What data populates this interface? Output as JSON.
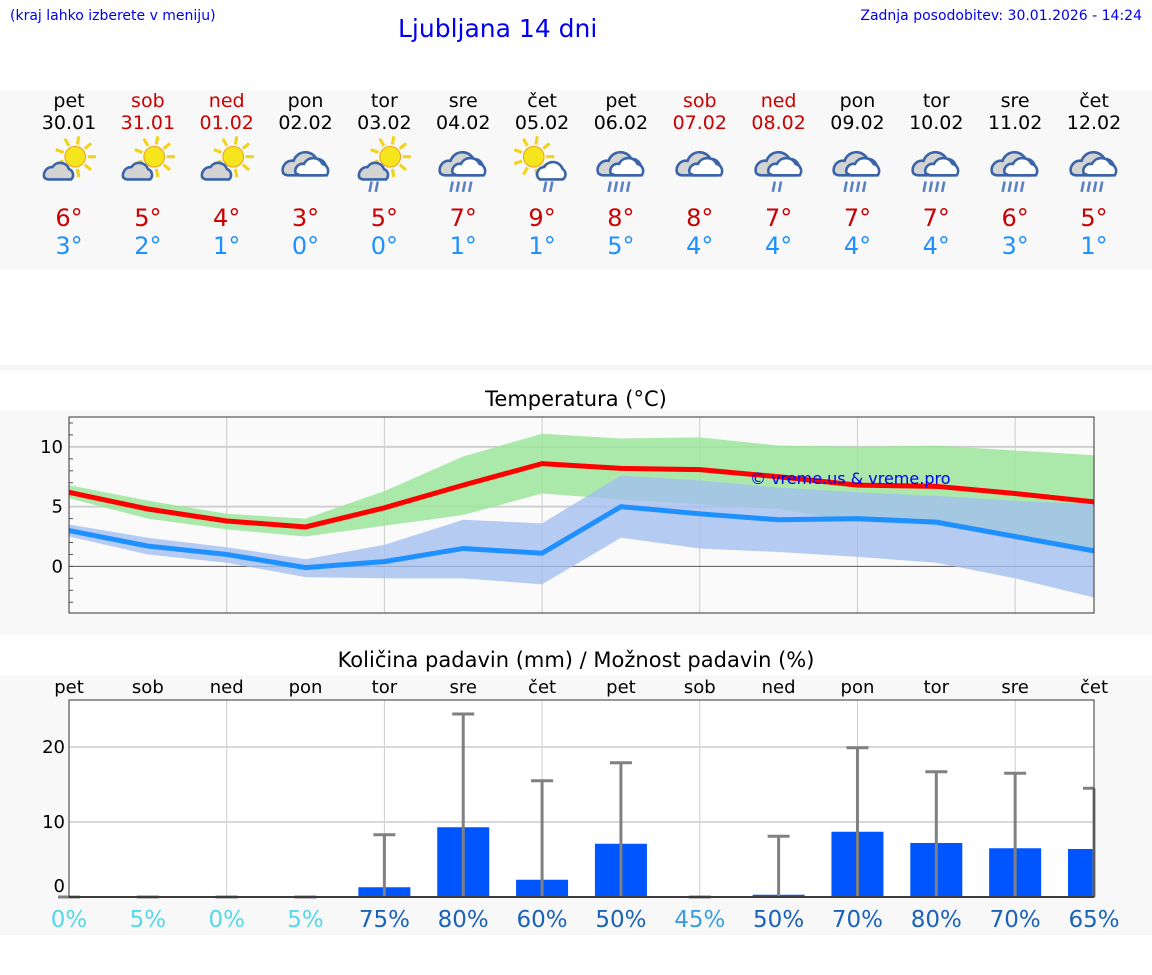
{
  "header": {
    "hint": "(kraj lahko izberete v meniju)",
    "title": "Ljubljana 14 dni",
    "updated": "Zadnja posodobitev: 30.01.2026 - 14:24"
  },
  "days": [
    {
      "name": "pet",
      "date": "30.01",
      "weekend": false,
      "icon": "sun-cloud",
      "max": "6°",
      "min": "3°"
    },
    {
      "name": "sob",
      "date": "31.01",
      "weekend": true,
      "icon": "sun-cloud",
      "max": "5°",
      "min": "2°"
    },
    {
      "name": "ned",
      "date": "01.02",
      "weekend": true,
      "icon": "sun-cloud",
      "max": "4°",
      "min": "1°"
    },
    {
      "name": "pon",
      "date": "02.02",
      "weekend": false,
      "icon": "cloud",
      "max": "3°",
      "min": "0°"
    },
    {
      "name": "tor",
      "date": "03.02",
      "weekend": false,
      "icon": "sun-cloud-rain",
      "max": "5°",
      "min": "0°"
    },
    {
      "name": "sre",
      "date": "04.02",
      "weekend": false,
      "icon": "cloud-rain",
      "max": "7°",
      "min": "1°"
    },
    {
      "name": "čet",
      "date": "05.02",
      "weekend": false,
      "icon": "sun-cloud-light-rain",
      "max": "9°",
      "min": "1°"
    },
    {
      "name": "pet",
      "date": "06.02",
      "weekend": false,
      "icon": "cloud-rain",
      "max": "8°",
      "min": "5°"
    },
    {
      "name": "sob",
      "date": "07.02",
      "weekend": true,
      "icon": "cloud",
      "max": "8°",
      "min": "4°"
    },
    {
      "name": "ned",
      "date": "08.02",
      "weekend": true,
      "icon": "cloud-light-rain",
      "max": "7°",
      "min": "4°"
    },
    {
      "name": "pon",
      "date": "09.02",
      "weekend": false,
      "icon": "cloud-rain",
      "max": "7°",
      "min": "4°"
    },
    {
      "name": "tor",
      "date": "10.02",
      "weekend": false,
      "icon": "cloud-rain",
      "max": "7°",
      "min": "4°"
    },
    {
      "name": "sre",
      "date": "11.02",
      "weekend": false,
      "icon": "cloud-rain",
      "max": "6°",
      "min": "3°"
    },
    {
      "name": "čet",
      "date": "12.02",
      "weekend": false,
      "icon": "cloud-rain",
      "max": "5°",
      "min": "1°"
    }
  ],
  "chart_data": [
    {
      "type": "line",
      "title": "Temperatura (°C)",
      "watermark": "© vreme.us & vreme.pro",
      "ylim": [
        -3.9,
        12.5
      ],
      "yticks": [
        0,
        5,
        10
      ],
      "grid": true,
      "series": [
        {
          "color": "#ff0000",
          "values": [
            6.2,
            4.8,
            3.8,
            3.3,
            4.9,
            6.8,
            8.6,
            8.2,
            8.1,
            7.5,
            6.8,
            6.7,
            6.1,
            5.4
          ],
          "band_color": "#9be59b",
          "band_low": [
            5.7,
            4.0,
            3.1,
            2.5,
            3.4,
            4.3,
            6.1,
            5.6,
            5.2,
            4.8,
            3.7,
            3.4,
            2.5,
            1.5
          ],
          "band_high": [
            6.8,
            5.5,
            4.4,
            4.0,
            6.3,
            9.2,
            11.1,
            10.7,
            10.8,
            10.1,
            10.0,
            10.1,
            9.7,
            9.3
          ]
        },
        {
          "color": "#1e90ff",
          "values": [
            3.0,
            1.7,
            1.0,
            -0.1,
            0.4,
            1.5,
            1.1,
            5.0,
            4.4,
            3.9,
            4.0,
            3.7,
            2.5,
            1.3
          ],
          "band_color": "#a4bff0",
          "band_low": [
            2.5,
            1.0,
            0.3,
            -0.9,
            -1.0,
            -1.0,
            -1.5,
            2.4,
            1.5,
            1.2,
            0.8,
            0.3,
            -1.0,
            -2.6
          ],
          "band_high": [
            3.5,
            2.4,
            1.6,
            0.6,
            1.8,
            3.9,
            3.6,
            7.6,
            7.2,
            6.6,
            6.2,
            5.9,
            5.5,
            5.2
          ]
        }
      ]
    },
    {
      "type": "bar",
      "title": "Količina padavin (mm) / Možnost padavin (%)",
      "categories": [
        "pet",
        "sob",
        "ned",
        "pon",
        "tor",
        "sre",
        "čet",
        "pet",
        "sob",
        "ned",
        "pon",
        "tor",
        "sre",
        "čet"
      ],
      "ylim": [
        0,
        26
      ],
      "yticks": [
        0,
        10,
        20
      ],
      "bar_color": "#0055ff",
      "values": [
        0,
        0,
        0,
        0,
        1.3,
        9.3,
        2.3,
        7.1,
        0,
        0.3,
        8.7,
        7.2,
        6.5,
        6.4
      ],
      "error_max": [
        0,
        0,
        0,
        0,
        8.3,
        24.4,
        15.5,
        17.9,
        0,
        8.1,
        19.9,
        16.7,
        16.5,
        14.5
      ],
      "probability": [
        "0%",
        "5%",
        "0%",
        "5%",
        "75%",
        "80%",
        "60%",
        "50%",
        "45%",
        "50%",
        "70%",
        "80%",
        "70%",
        "65%"
      ],
      "probability_colors": [
        "#55d8ea",
        "#55d8ea",
        "#55d8ea",
        "#55d8ea",
        "#1a63b8",
        "#1a63b8",
        "#1a63b8",
        "#1a63b8",
        "#3a9ee0",
        "#1a63b8",
        "#1a63b8",
        "#1a63b8",
        "#1a63b8",
        "#1a63b8"
      ]
    }
  ]
}
